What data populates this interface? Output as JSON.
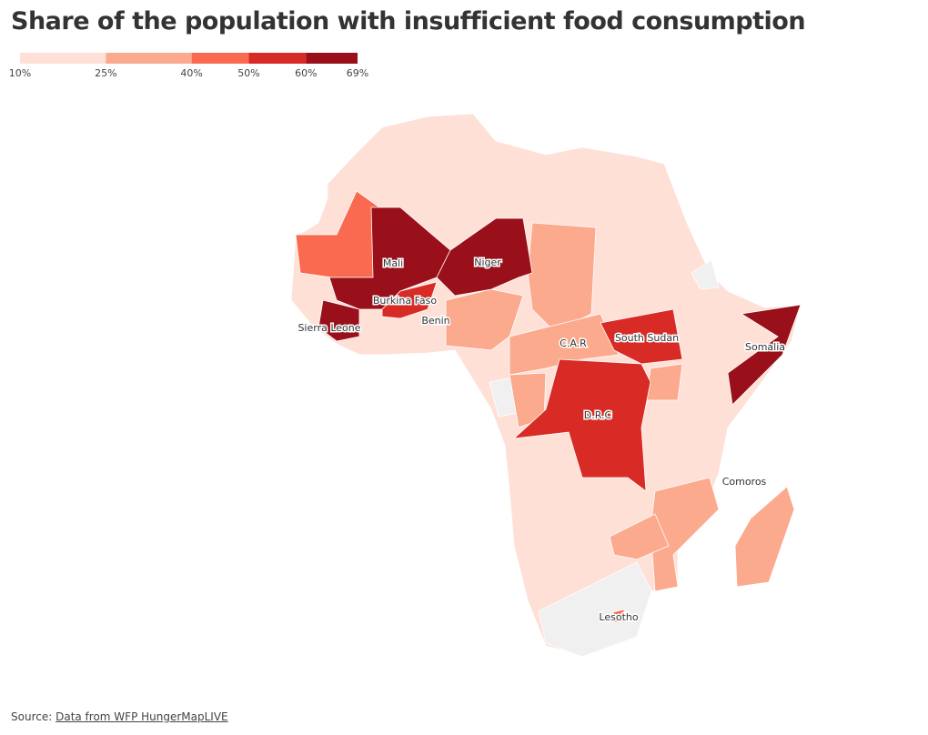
{
  "title": "Share of the population with insufficient food consumption",
  "legend": {
    "ticks": [
      {
        "value": 10,
        "label": "10%"
      },
      {
        "value": 25,
        "label": "25%"
      },
      {
        "value": 40,
        "label": "40%"
      },
      {
        "value": 50,
        "label": "50%"
      },
      {
        "value": 60,
        "label": "60%"
      },
      {
        "value": 69,
        "label": "69%"
      }
    ],
    "colors": [
      "#fee0d6",
      "#fcaa8e",
      "#f96a50",
      "#d82b25",
      "#99101a"
    ]
  },
  "labels": [
    "Mali",
    "Niger",
    "Burkina Faso",
    "Sierra Leone",
    "Benin",
    "C.A.R",
    "South Sudan",
    "Somalia",
    "D.R.C",
    "Comoros",
    "Lesotho"
  ],
  "source": {
    "prefix": "Source:",
    "link": "Data from WFP HungerMapLIVE"
  }
}
